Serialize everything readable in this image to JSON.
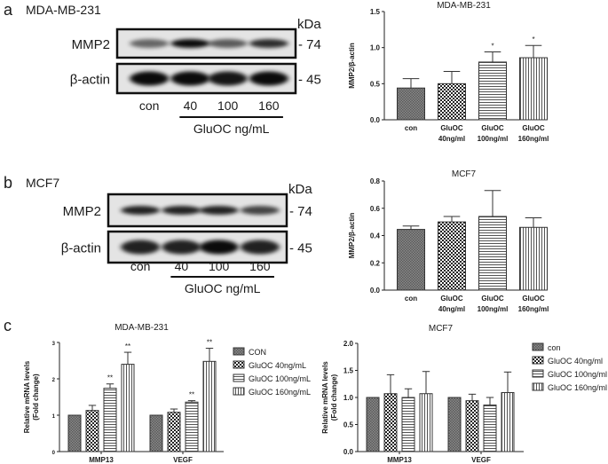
{
  "panels": {
    "a": {
      "letter": "a",
      "cell_line": "MDA-MB-231"
    },
    "b": {
      "letter": "b",
      "cell_line": "MCF7"
    },
    "c": {
      "letter": "c"
    }
  },
  "blots": [
    {
      "panel": "a",
      "kda_label": "kDa",
      "rows": [
        {
          "protein": "MMP2",
          "marker": "- 74",
          "band_intensity": [
            0.55,
            0.95,
            0.6,
            0.8
          ]
        },
        {
          "protein": "β-actin",
          "marker": "- 45",
          "band_intensity": [
            0.95,
            0.95,
            0.9,
            0.95
          ]
        }
      ],
      "lanes": [
        "con",
        "40",
        "100",
        "160"
      ],
      "treatment_label": "GluOC ng/mL"
    },
    {
      "panel": "b",
      "kda_label": "kDa",
      "rows": [
        {
          "protein": "MMP2",
          "marker": "- 74",
          "band_intensity": [
            0.85,
            0.85,
            0.85,
            0.7
          ]
        },
        {
          "protein": "β-actin",
          "marker": "- 45",
          "band_intensity": [
            0.85,
            0.85,
            0.95,
            0.85
          ]
        }
      ],
      "lanes": [
        "con",
        "40",
        "100",
        "160"
      ],
      "treatment_label": "GluOC ng/mL"
    }
  ],
  "colors": {
    "ink": "#1a1a1a",
    "con_fill": "#7a7a7a",
    "bar_stroke": "#333333"
  },
  "chart_data": [
    {
      "type": "bar",
      "title": "MDA-MB-231",
      "ylabel": "MMP2/β-actin",
      "xlabel": "",
      "ylim": [
        0,
        1.5
      ],
      "yticks": [
        "0.0",
        "0.5",
        "1.0",
        "1.5"
      ],
      "ytick_values": [
        0,
        0.5,
        1.0,
        1.5
      ],
      "categories": [
        [
          "con",
          ""
        ],
        [
          "GluOC",
          "40ng/ml"
        ],
        [
          "GluOC",
          "100ng/ml"
        ],
        [
          "GluOC",
          "160ng/ml"
        ]
      ],
      "values": [
        0.44,
        0.5,
        0.8,
        0.86
      ],
      "errors_upper": [
        0.57,
        0.67,
        0.94,
        1.03
      ],
      "annotations": [
        "",
        "",
        "*",
        "*"
      ],
      "patterns": [
        "con",
        "check",
        "hlines",
        "vlines"
      ]
    },
    {
      "type": "bar",
      "title": "MCF7",
      "ylabel": "MMP2/β-actin",
      "xlabel": "",
      "ylim": [
        0,
        0.8
      ],
      "yticks": [
        "0.0",
        "0.2",
        "0.4",
        "0.6",
        "0.8"
      ],
      "ytick_values": [
        0,
        0.2,
        0.4,
        0.6,
        0.8
      ],
      "categories": [
        [
          "con",
          ""
        ],
        [
          "GluOC",
          "40ng/ml"
        ],
        [
          "GluOC",
          "100ng/ml"
        ],
        [
          "GluOC",
          "160ng/ml"
        ]
      ],
      "values": [
        0.445,
        0.5,
        0.54,
        0.46
      ],
      "errors_upper": [
        0.47,
        0.54,
        0.73,
        0.53
      ],
      "annotations": [
        "",
        "",
        "",
        ""
      ],
      "patterns": [
        "con",
        "check",
        "hlines",
        "vlines"
      ]
    },
    {
      "type": "bar",
      "title": "MDA-MB-231",
      "ylabel": [
        "Relative mRNA levels",
        "(Fold change)"
      ],
      "xlabel": "",
      "ylim": [
        0,
        3
      ],
      "yticks": [
        "0",
        "1",
        "2",
        "3"
      ],
      "ytick_values": [
        0,
        1,
        2,
        3
      ],
      "categories": [
        "MMP13",
        "VEGF"
      ],
      "legend": [
        "CON",
        "GluOC 40ng/mL",
        "GluOC 100ng/mL",
        "GluOC 160ng/mL"
      ],
      "legend_position": "right",
      "series": [
        {
          "name": "CON",
          "values": [
            1.0,
            1.0
          ],
          "errors_upper": [
            1.0,
            1.0
          ],
          "annotations": [
            "",
            ""
          ]
        },
        {
          "name": "GluOC 40ng/mL",
          "values": [
            1.13,
            1.08
          ],
          "errors_upper": [
            1.27,
            1.17
          ],
          "annotations": [
            "",
            ""
          ]
        },
        {
          "name": "GluOC 100ng/mL",
          "values": [
            1.74,
            1.36
          ],
          "errors_upper": [
            1.86,
            1.4
          ],
          "annotations": [
            "**",
            "**"
          ]
        },
        {
          "name": "GluOC 160ng/mL",
          "values": [
            2.4,
            2.48
          ],
          "errors_upper": [
            2.73,
            2.84
          ],
          "annotations": [
            "**",
            "**"
          ]
        }
      ],
      "patterns": [
        "con",
        "check",
        "hlines",
        "vlines"
      ]
    },
    {
      "type": "bar",
      "title": "MCF7",
      "ylabel": [
        "Relative mRNA levels",
        "(Fold change)"
      ],
      "xlabel": "",
      "ylim": [
        0,
        2.0
      ],
      "yticks": [
        "0.0",
        "0.5",
        "1.0",
        "1.5",
        "2.0"
      ],
      "ytick_values": [
        0,
        0.5,
        1.0,
        1.5,
        2.0
      ],
      "categories": [
        "MMP13",
        "VEGF"
      ],
      "legend": [
        "con",
        "GluOC 40ng/ml",
        "GluOC 100ng/ml",
        "GluOC 160ng/ml"
      ],
      "legend_position": "right",
      "series": [
        {
          "name": "con",
          "values": [
            1.0,
            1.0
          ],
          "errors_upper": [
            1.0,
            1.0
          ],
          "annotations": [
            "",
            ""
          ]
        },
        {
          "name": "GluOC 40ng/ml",
          "values": [
            1.07,
            0.94
          ],
          "errors_upper": [
            1.42,
            1.06
          ],
          "annotations": [
            "",
            ""
          ]
        },
        {
          "name": "GluOC 100ng/ml",
          "values": [
            1.0,
            0.86
          ],
          "errors_upper": [
            1.16,
            1.0
          ],
          "annotations": [
            "",
            ""
          ]
        },
        {
          "name": "GluOC 160ng/ml",
          "values": [
            1.07,
            1.09
          ],
          "errors_upper": [
            1.48,
            1.47
          ],
          "annotations": [
            "",
            ""
          ]
        }
      ],
      "patterns": [
        "con",
        "check",
        "hlines",
        "vlines"
      ]
    }
  ]
}
